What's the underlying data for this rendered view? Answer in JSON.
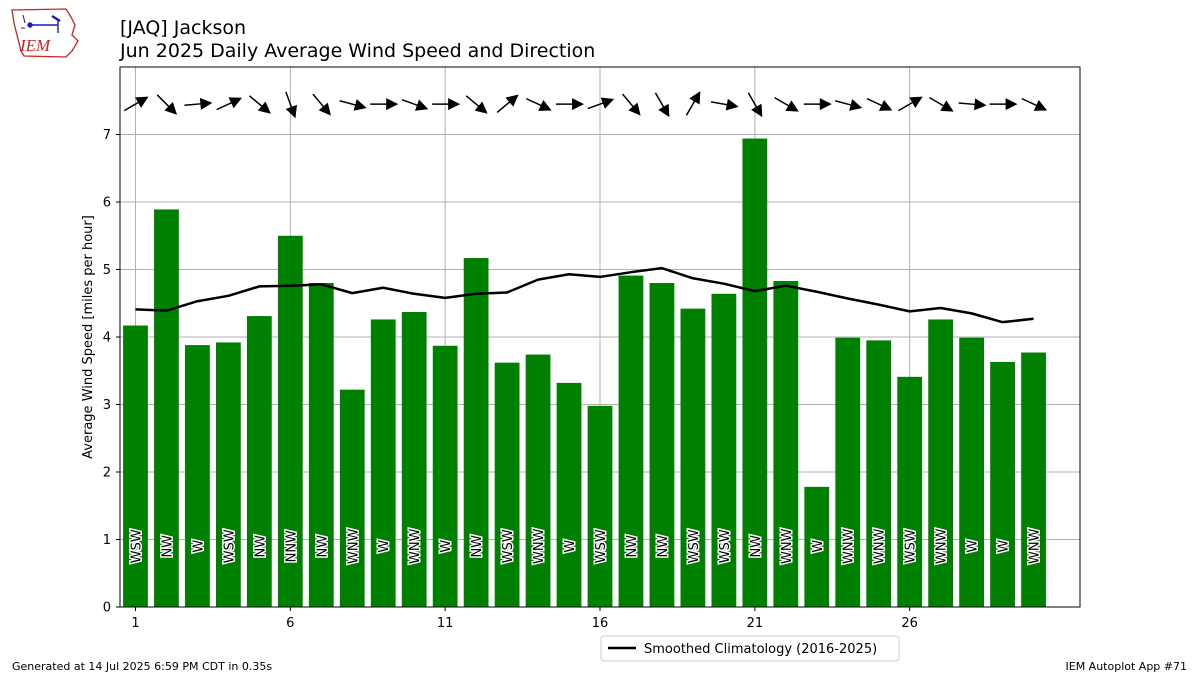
{
  "header": {
    "title": "[JAQ] Jackson",
    "subtitle": "Jun 2025 Daily Average Wind Speed and Direction",
    "logo_text": "IEM"
  },
  "footer": {
    "generated": "Generated at 14 Jul 2025 6:59 PM CDT in 0.35s",
    "app": "IEM Autoplot App #71"
  },
  "colors": {
    "bar": "#008000",
    "climo_line": "#000000",
    "grid": "#b0b0b0",
    "logo_red": "#cc2222",
    "logo_blue": "#1a1ab8"
  },
  "chart_data": {
    "type": "bar",
    "ylabel": "Average Wind Speed [miles per hour]",
    "xlabel": "",
    "ylim": [
      0,
      8
    ],
    "xlim": [
      0.5,
      31.5
    ],
    "xticks": [
      1,
      6,
      11,
      16,
      21,
      26
    ],
    "yticks": [
      0,
      1,
      2,
      3,
      4,
      5,
      6,
      7
    ],
    "grid": true,
    "legend": {
      "location": "below-center",
      "label": "Smoothed Climatology (2016-2025)"
    },
    "days": [
      1,
      2,
      3,
      4,
      5,
      6,
      7,
      8,
      9,
      10,
      11,
      12,
      13,
      14,
      15,
      16,
      17,
      18,
      19,
      20,
      21,
      22,
      23,
      24,
      25,
      26,
      27,
      28,
      29,
      30
    ],
    "speed": [
      4.17,
      5.89,
      3.88,
      3.92,
      4.31,
      5.5,
      4.8,
      3.22,
      4.26,
      4.37,
      3.87,
      5.17,
      3.62,
      3.74,
      3.32,
      2.98,
      4.91,
      4.8,
      4.42,
      4.64,
      6.94,
      4.83,
      1.78,
      3.99,
      3.95,
      3.41,
      4.26,
      3.99,
      3.63,
      3.77
    ],
    "direction": [
      "WSW",
      "NW",
      "W",
      "WSW",
      "NW",
      "NNW",
      "NW",
      "WNW",
      "W",
      "WNW",
      "W",
      "NW",
      "WSW",
      "WNW",
      "W",
      "WSW",
      "NW",
      "NW",
      "WSW",
      "WSW",
      "NW",
      "WNW",
      "W",
      "WNW",
      "WNW",
      "WSW",
      "WNW",
      "W",
      "W",
      "WNW"
    ],
    "arrow_dir_deg": [
      240,
      315,
      265,
      245,
      310,
      340,
      320,
      285,
      270,
      290,
      270,
      310,
      230,
      295,
      270,
      250,
      320,
      330,
      210,
      280,
      330,
      300,
      270,
      285,
      295,
      240,
      300,
      275,
      270,
      295
    ],
    "climatology": [
      4.41,
      4.39,
      4.53,
      4.61,
      4.75,
      4.76,
      4.78,
      4.65,
      4.73,
      4.64,
      4.58,
      4.64,
      4.66,
      4.85,
      4.93,
      4.89,
      4.96,
      5.02,
      4.87,
      4.79,
      4.68,
      4.76,
      4.67,
      4.57,
      4.48,
      4.38,
      4.43,
      4.35,
      4.22,
      4.27
    ]
  }
}
